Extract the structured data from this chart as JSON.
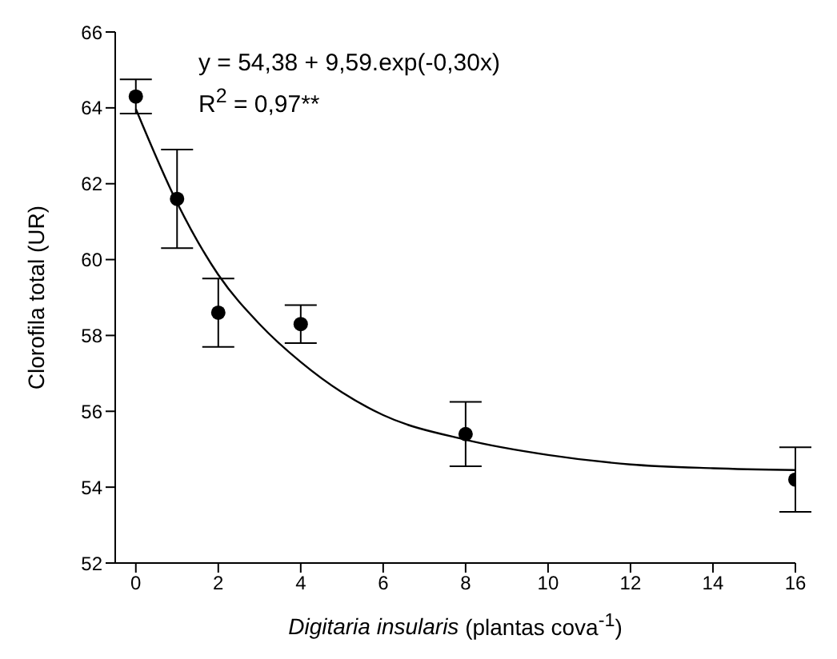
{
  "chart_data": {
    "type": "scatter",
    "xlabel": "Digitaria insularis (plantas cova$^{-1}$)",
    "ylabel": "Clorofila total (UR)",
    "xlim": [
      -0.5,
      16
    ],
    "xticks": [
      0,
      2,
      4,
      6,
      8,
      10,
      12,
      14,
      16
    ],
    "ylim": [
      52,
      66
    ],
    "yticks": [
      52,
      54,
      56,
      58,
      60,
      62,
      64,
      66
    ],
    "grid": false,
    "legend": false,
    "marker": "circle",
    "series": [
      {
        "color": "#000000",
        "x": [
          0,
          1,
          2,
          4,
          8,
          16
        ],
        "values": [
          64.3,
          61.6,
          58.6,
          58.3,
          55.4,
          54.2
        ],
        "errors": [
          0.45,
          1.3,
          0.9,
          0.5,
          0.85,
          0.85
        ]
      },
      {
        "type": "line",
        "color": "#000000",
        "marker": "none",
        "line_style": "solid",
        "x": [
          0,
          1,
          2,
          3,
          4,
          5,
          6,
          8,
          10,
          12,
          14,
          16
        ],
        "values": [
          63.97,
          61.5,
          59.6,
          58.3,
          57.3,
          56.5,
          55.9,
          55.25,
          54.85,
          54.6,
          54.5,
          54.45
        ]
      }
    ],
    "annotations": [
      "y = 54,38 + 9,59.exp(-0,30x)",
      "R$^{2}$ = 0,97**"
    ]
  }
}
